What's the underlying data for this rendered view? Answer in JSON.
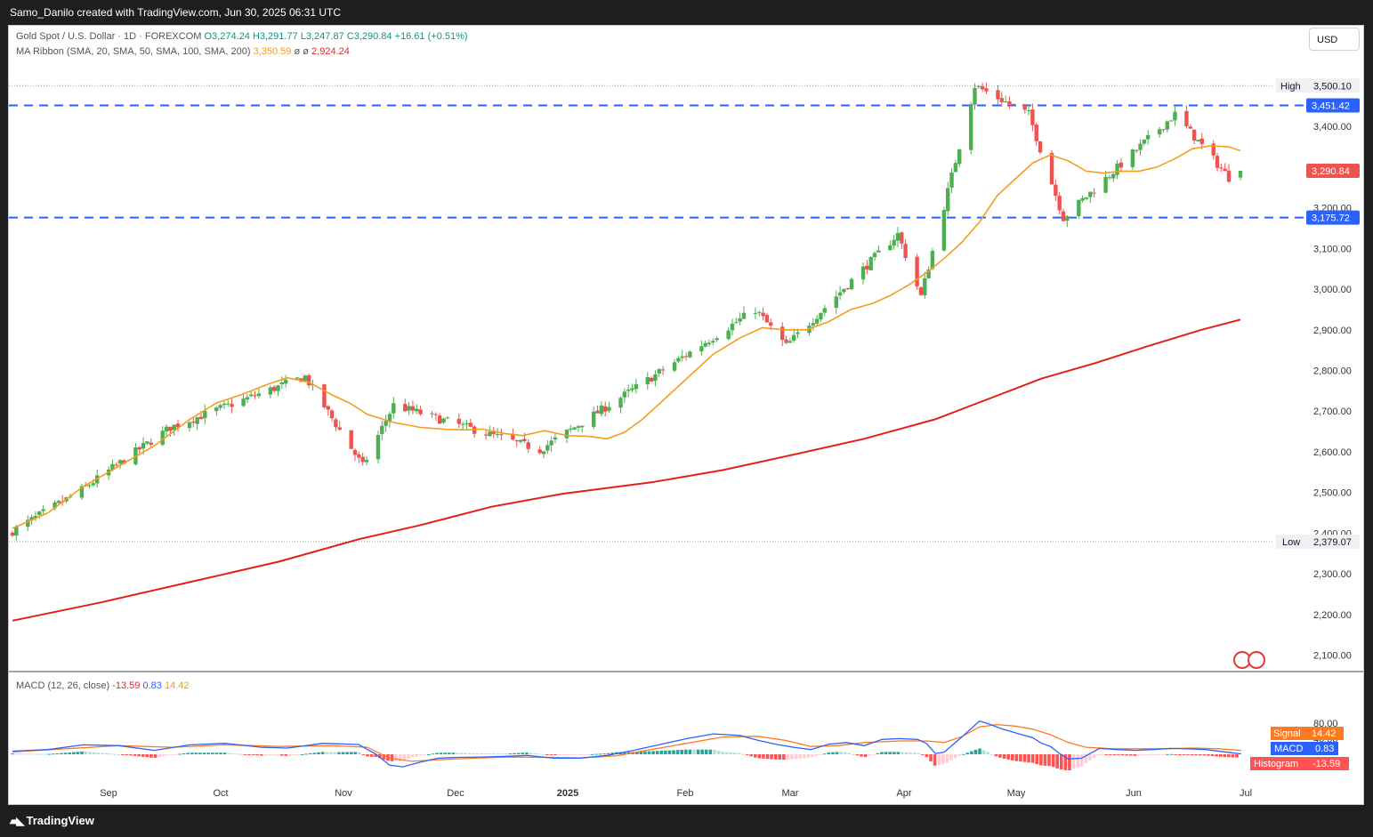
{
  "header": {
    "attribution": "Samo_Danilo created with TradingView.com, Jun 30, 2025 06:31 UTC",
    "brand": "TradingView"
  },
  "legend": {
    "symbol": "Gold Spot / U.S. Dollar · 1D · FOREXCOM",
    "open": "O3,274.24",
    "high": "H3,291.77",
    "low": "L3,247.87",
    "close": "C3,290.84",
    "change": "+16.61 (+0.51%)",
    "ma_label": "MA Ribbon (SMA, 20, SMA, 50, SMA, 100, SMA, 200)",
    "ma_value1": "3,350.59",
    "ma_sep1": "ø",
    "ma_sep2": "ø",
    "ma_value2": "2,924.24",
    "macd_label": "MACD (12, 26, close)",
    "macd_hist": "-13.59",
    "macd_macd": "0.83",
    "macd_signal": "14.42"
  },
  "currency_button": "USD",
  "colors": {
    "up": "#4caf50",
    "down": "#ef5350",
    "sma20": "#f59d1f",
    "sma200": "#e0201b",
    "level": "#2962ff",
    "macd": "#2962ff",
    "signal": "#ff7a1f",
    "hist_up_strong": "#26a69a",
    "hist_up_weak": "#b2dfdb",
    "hist_down_strong": "#ff5252",
    "hist_down_weak": "#ffcdd2"
  },
  "price_axis": {
    "ticks": [
      "2,100.00",
      "2,200.00",
      "2,300.00",
      "2,400.00",
      "2,500.00",
      "2,600.00",
      "2,700.00",
      "2,800.00",
      "2,900.00",
      "3,000.00",
      "3,100.00",
      "3,200.00",
      "3,300.00",
      "3,400.00"
    ],
    "high_label": "High",
    "high_value": "3,500.10",
    "low_label": "Low",
    "low_value": "2,379.07",
    "level_upper": "3,451.42",
    "level_lower": "3,175.72",
    "last_price": "3,290.84"
  },
  "macd_axis": {
    "ticks": [
      "80.00",
      "40.00"
    ],
    "signal_label": "Signal",
    "signal_value": "14.42",
    "macd_label": "MACD",
    "macd_value": "0.83",
    "hist_label": "Histogram",
    "hist_value": "-13.59"
  },
  "time_axis": {
    "labels": [
      "Sep",
      "Oct",
      "Nov",
      "Dec",
      "2025",
      "Feb",
      "Mar",
      "Apr",
      "May",
      "Jun",
      "Jul"
    ]
  },
  "chart_data": {
    "type": "candlestick",
    "series_name": "Gold Spot / U.S. Dollar",
    "timeframe": "1D",
    "ylim": [
      2060,
      3540
    ],
    "key_points": [
      {
        "date": "2024-08-15",
        "close": 2405
      },
      {
        "date": "2024-09-01",
        "close": 2500
      },
      {
        "date": "2024-09-25",
        "close": 2660
      },
      {
        "date": "2024-10-30",
        "close": 2785
      },
      {
        "date": "2024-11-14",
        "close": 2565
      },
      {
        "date": "2024-11-22",
        "close": 2715
      },
      {
        "date": "2024-12-30",
        "close": 2605
      },
      {
        "date": "2025-01-30",
        "close": 2795
      },
      {
        "date": "2025-02-24",
        "close": 2950
      },
      {
        "date": "2025-03-04",
        "close": 2860
      },
      {
        "date": "2025-04-02",
        "close": 3135
      },
      {
        "date": "2025-04-08",
        "close": 2982
      },
      {
        "date": "2025-04-22",
        "close": 3500
      },
      {
        "date": "2025-05-06",
        "close": 3430
      },
      {
        "date": "2025-05-15",
        "close": 3175
      },
      {
        "date": "2025-06-13",
        "close": 3430
      },
      {
        "date": "2025-06-27",
        "close": 3274
      },
      {
        "date": "2025-06-30",
        "close": 3290.84
      }
    ],
    "last_bar": {
      "open": 3274.24,
      "high": 3291.77,
      "low": 3247.87,
      "close": 3290.84
    },
    "sma20": [
      [
        0,
        2412
      ],
      [
        40,
        2450
      ],
      [
        80,
        2515
      ],
      [
        120,
        2565
      ],
      [
        160,
        2615
      ],
      [
        200,
        2680
      ],
      [
        230,
        2720
      ],
      [
        260,
        2742
      ],
      [
        290,
        2768
      ],
      [
        310,
        2782
      ],
      [
        335,
        2770
      ],
      [
        360,
        2740
      ],
      [
        380,
        2720
      ],
      [
        400,
        2692
      ],
      [
        430,
        2672
      ],
      [
        460,
        2660
      ],
      [
        490,
        2655
      ],
      [
        510,
        2654
      ],
      [
        530,
        2656
      ],
      [
        555,
        2645
      ],
      [
        575,
        2640
      ],
      [
        600,
        2652
      ],
      [
        625,
        2640
      ],
      [
        650,
        2638
      ],
      [
        670,
        2632
      ],
      [
        690,
        2648
      ],
      [
        710,
        2680
      ],
      [
        730,
        2720
      ],
      [
        760,
        2780
      ],
      [
        790,
        2840
      ],
      [
        820,
        2880
      ],
      [
        845,
        2905
      ],
      [
        870,
        2900
      ],
      [
        895,
        2900
      ],
      [
        920,
        2920
      ],
      [
        945,
        2950
      ],
      [
        970,
        2965
      ],
      [
        990,
        2985
      ],
      [
        1010,
        3010
      ],
      [
        1030,
        3040
      ],
      [
        1050,
        3075
      ],
      [
        1070,
        3115
      ],
      [
        1090,
        3165
      ],
      [
        1110,
        3230
      ],
      [
        1130,
        3270
      ],
      [
        1150,
        3310
      ],
      [
        1170,
        3330
      ],
      [
        1190,
        3315
      ],
      [
        1210,
        3290
      ],
      [
        1230,
        3285
      ],
      [
        1250,
        3290
      ],
      [
        1270,
        3290
      ],
      [
        1290,
        3300
      ],
      [
        1310,
        3320
      ],
      [
        1330,
        3345
      ],
      [
        1350,
        3352
      ],
      [
        1370,
        3350
      ],
      [
        1384,
        3340
      ]
    ],
    "sma200": [
      [
        0,
        2185
      ],
      [
        100,
        2230
      ],
      [
        200,
        2280
      ],
      [
        300,
        2330
      ],
      [
        390,
        2385
      ],
      [
        460,
        2420
      ],
      [
        540,
        2465
      ],
      [
        620,
        2497
      ],
      [
        720,
        2525
      ],
      [
        800,
        2555
      ],
      [
        880,
        2593
      ],
      [
        960,
        2632
      ],
      [
        1040,
        2680
      ],
      [
        1100,
        2730
      ],
      [
        1160,
        2780
      ],
      [
        1220,
        2818
      ],
      [
        1280,
        2860
      ],
      [
        1340,
        2900
      ],
      [
        1384,
        2925
      ]
    ],
    "macd": [
      [
        0,
        8
      ],
      [
        40,
        12
      ],
      [
        80,
        24
      ],
      [
        120,
        22
      ],
      [
        160,
        10
      ],
      [
        200,
        24
      ],
      [
        240,
        28
      ],
      [
        280,
        18
      ],
      [
        310,
        16
      ],
      [
        350,
        28
      ],
      [
        390,
        25
      ],
      [
        410,
        0
      ],
      [
        425,
        -28
      ],
      [
        440,
        -32
      ],
      [
        460,
        -20
      ],
      [
        480,
        -10
      ],
      [
        500,
        -8
      ],
      [
        530,
        -7
      ],
      [
        560,
        -5
      ],
      [
        580,
        -3
      ],
      [
        610,
        -10
      ],
      [
        640,
        -10
      ],
      [
        670,
        -3
      ],
      [
        700,
        10
      ],
      [
        730,
        25
      ],
      [
        760,
        40
      ],
      [
        790,
        52
      ],
      [
        820,
        48
      ],
      [
        840,
        36
      ],
      [
        860,
        26
      ],
      [
        880,
        18
      ],
      [
        900,
        12
      ],
      [
        920,
        26
      ],
      [
        940,
        30
      ],
      [
        960,
        22
      ],
      [
        980,
        38
      ],
      [
        1000,
        40
      ],
      [
        1020,
        38
      ],
      [
        1030,
        28
      ],
      [
        1040,
        2
      ],
      [
        1050,
        5
      ],
      [
        1070,
        44
      ],
      [
        1090,
        85
      ],
      [
        1100,
        78
      ],
      [
        1115,
        65
      ],
      [
        1130,
        55
      ],
      [
        1150,
        42
      ],
      [
        1160,
        28
      ],
      [
        1170,
        20
      ],
      [
        1180,
        2
      ],
      [
        1190,
        -12
      ],
      [
        1205,
        -10
      ],
      [
        1225,
        15
      ],
      [
        1245,
        12
      ],
      [
        1265,
        10
      ],
      [
        1285,
        12
      ],
      [
        1305,
        15
      ],
      [
        1325,
        14
      ],
      [
        1345,
        12
      ],
      [
        1370,
        5
      ],
      [
        1385,
        1
      ]
    ],
    "signal": [
      [
        0,
        6
      ],
      [
        60,
        14
      ],
      [
        120,
        22
      ],
      [
        180,
        18
      ],
      [
        240,
        24
      ],
      [
        300,
        20
      ],
      [
        360,
        22
      ],
      [
        400,
        18
      ],
      [
        425,
        -10
      ],
      [
        450,
        -18
      ],
      [
        480,
        -14
      ],
      [
        520,
        -10
      ],
      [
        560,
        -7
      ],
      [
        600,
        -8
      ],
      [
        640,
        -9
      ],
      [
        680,
        -4
      ],
      [
        720,
        12
      ],
      [
        760,
        28
      ],
      [
        800,
        44
      ],
      [
        840,
        46
      ],
      [
        870,
        36
      ],
      [
        900,
        20
      ],
      [
        930,
        22
      ],
      [
        960,
        30
      ],
      [
        1000,
        34
      ],
      [
        1030,
        34
      ],
      [
        1050,
        30
      ],
      [
        1070,
        45
      ],
      [
        1090,
        70
      ],
      [
        1110,
        76
      ],
      [
        1130,
        72
      ],
      [
        1150,
        64
      ],
      [
        1170,
        50
      ],
      [
        1190,
        30
      ],
      [
        1210,
        18
      ],
      [
        1240,
        14
      ],
      [
        1270,
        14
      ],
      [
        1300,
        14
      ],
      [
        1330,
        16
      ],
      [
        1360,
        14
      ],
      [
        1385,
        10
      ]
    ]
  }
}
